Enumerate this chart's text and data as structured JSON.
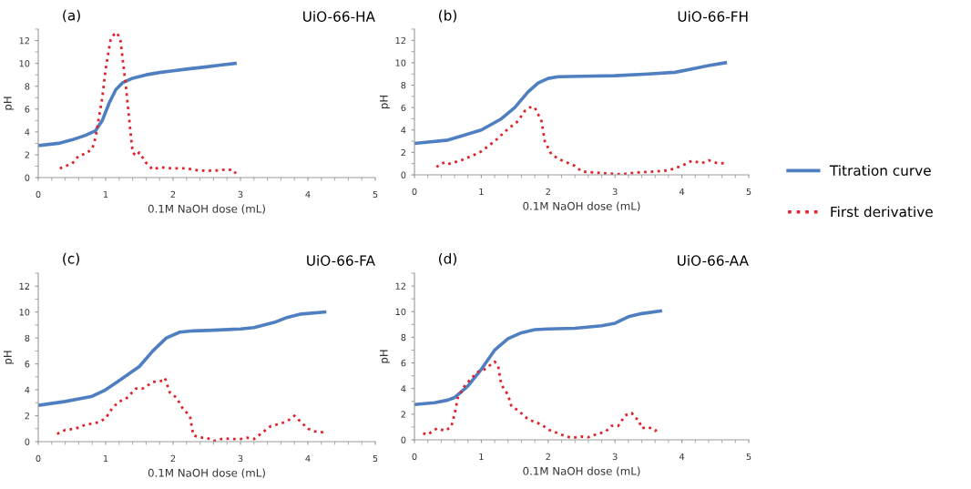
{
  "chart_data": [
    {
      "type": "line",
      "title": "UiO-66-HA",
      "annotations": [
        "(a)"
      ],
      "xlabel": "0.1M NaOH dose (mL)",
      "ylabel": "pH",
      "xlim": [
        0,
        5
      ],
      "ylim": [
        0,
        13
      ],
      "xticks": [
        0,
        1,
        2,
        3,
        4,
        5
      ],
      "yticks": [
        0,
        2,
        4,
        6,
        8,
        10,
        12
      ],
      "grid": false,
      "legend": false,
      "marker": "none",
      "series": [
        {
          "color": "#4f7fc0",
          "line_style": "solid",
          "x": [
            0,
            0.3,
            0.5,
            0.7,
            0.85,
            0.95,
            1.05,
            1.15,
            1.25,
            1.4,
            1.6,
            1.8,
            2.0,
            2.2,
            2.5,
            2.7,
            2.92
          ],
          "values": [
            2.8,
            3.0,
            3.3,
            3.7,
            4.1,
            5.0,
            6.5,
            7.7,
            8.3,
            8.7,
            9.0,
            9.2,
            9.35,
            9.5,
            9.7,
            9.85,
            10.0
          ]
        },
        {
          "color": "#e0222a",
          "line_style": "dotted",
          "x": [
            0.32,
            0.4,
            0.5,
            0.6,
            0.7,
            0.8,
            0.85,
            0.95,
            1.0,
            1.07,
            1.12,
            1.17,
            1.22,
            1.3,
            1.36,
            1.4,
            1.45,
            1.5,
            1.6,
            1.7,
            1.8,
            2.0,
            2.2,
            2.4,
            2.6,
            2.8,
            2.9,
            2.93
          ],
          "values": [
            0.8,
            1.0,
            1.2,
            1.9,
            2.1,
            2.5,
            3.5,
            7.0,
            9.5,
            12.0,
            12.5,
            12.7,
            12.0,
            8.0,
            4.5,
            2.2,
            1.9,
            2.2,
            1.3,
            0.7,
            0.9,
            0.8,
            0.8,
            0.6,
            0.6,
            0.7,
            0.65,
            0.35
          ]
        }
      ]
    },
    {
      "type": "line",
      "title": "UiO-66-FH",
      "annotations": [
        "(b)"
      ],
      "xlabel": "0.1M NaOH dose (mL)",
      "ylabel": "pH",
      "xlim": [
        0,
        5
      ],
      "ylim": [
        0,
        13
      ],
      "xticks": [
        0,
        1,
        2,
        3,
        4,
        5
      ],
      "yticks": [
        0,
        2,
        4,
        6,
        8,
        10,
        12
      ],
      "grid": false,
      "legend": "right",
      "marker": "none",
      "series": [
        {
          "name": "Titration curve",
          "color": "#4f7fc0",
          "line_style": "solid",
          "x": [
            0,
            0.5,
            1.0,
            1.3,
            1.5,
            1.7,
            1.85,
            2.0,
            2.15,
            2.5,
            3.0,
            3.5,
            3.9,
            4.2,
            4.4,
            4.65
          ],
          "values": [
            2.8,
            3.1,
            4.0,
            5.0,
            6.0,
            7.4,
            8.2,
            8.6,
            8.75,
            8.8,
            8.85,
            9.0,
            9.15,
            9.5,
            9.75,
            10.0
          ]
        },
        {
          "name": "First derivative",
          "color": "#e0222a",
          "line_style": "dotted",
          "x": [
            0.33,
            0.4,
            0.45,
            0.5,
            0.7,
            0.9,
            1.0,
            1.2,
            1.4,
            1.55,
            1.65,
            1.75,
            1.8,
            1.9,
            1.95,
            2.05,
            2.2,
            2.4,
            2.5,
            2.8,
            3.1,
            3.3,
            3.6,
            3.8,
            4.0,
            4.15,
            4.3,
            4.4,
            4.55,
            4.65
          ],
          "values": [
            0.7,
            1.0,
            1.1,
            0.95,
            1.3,
            1.8,
            2.1,
            3.0,
            4.1,
            4.8,
            5.7,
            6.1,
            6.0,
            4.8,
            3.0,
            1.8,
            1.3,
            0.8,
            0.3,
            0.15,
            0.05,
            0.2,
            0.3,
            0.4,
            0.8,
            1.25,
            1.05,
            1.3,
            1.0,
            1.05
          ]
        }
      ]
    },
    {
      "type": "line",
      "title": "UiO-66-FA",
      "annotations": [
        "(c)"
      ],
      "xlabel": "0.1M NaOH dose (mL)",
      "ylabel": "pH",
      "xlim": [
        0,
        5
      ],
      "ylim": [
        0,
        13
      ],
      "xticks": [
        0,
        1,
        2,
        3,
        4,
        5
      ],
      "yticks": [
        0,
        2,
        4,
        6,
        8,
        10,
        12
      ],
      "grid": false,
      "legend": false,
      "marker": "none",
      "series": [
        {
          "color": "#4f7fc0",
          "line_style": "solid",
          "x": [
            0,
            0.4,
            0.8,
            1.0,
            1.2,
            1.5,
            1.7,
            1.9,
            2.1,
            2.3,
            2.6,
            3.0,
            3.2,
            3.5,
            3.7,
            3.9,
            4.25
          ],
          "values": [
            2.8,
            3.1,
            3.5,
            4.0,
            4.7,
            5.8,
            7.0,
            8.0,
            8.45,
            8.55,
            8.6,
            8.7,
            8.8,
            9.2,
            9.6,
            9.85,
            10.0
          ]
        },
        {
          "color": "#e0222a",
          "line_style": "dotted",
          "x": [
            0.28,
            0.4,
            0.55,
            0.7,
            0.9,
            1.0,
            1.1,
            1.2,
            1.3,
            1.45,
            1.55,
            1.7,
            1.85,
            1.88,
            1.95,
            2.05,
            2.15,
            2.25,
            2.3,
            2.4,
            2.5,
            2.6,
            2.75,
            2.9,
            3.0,
            3.1,
            3.2,
            3.35,
            3.45,
            3.6,
            3.7,
            3.8,
            3.9,
            4.0,
            4.1,
            4.25
          ],
          "values": [
            0.6,
            0.9,
            1.0,
            1.3,
            1.5,
            1.8,
            2.6,
            3.1,
            3.3,
            4.1,
            4.1,
            4.6,
            4.7,
            4.9,
            3.8,
            3.4,
            2.5,
            2.0,
            0.5,
            0.3,
            0.3,
            0.05,
            0.25,
            0.2,
            0.2,
            0.3,
            0.2,
            0.8,
            1.2,
            1.4,
            1.6,
            2.0,
            1.5,
            1.0,
            0.8,
            0.7
          ]
        }
      ]
    },
    {
      "type": "line",
      "title": "UiO-66-AA",
      "annotations": [
        "(d)"
      ],
      "xlabel": "0.1M NaOH dose (mL)",
      "ylabel": "pH",
      "xlim": [
        0,
        5
      ],
      "ylim": [
        0,
        13
      ],
      "xticks": [
        0,
        1,
        2,
        3,
        4,
        5
      ],
      "yticks": [
        0,
        2,
        4,
        6,
        8,
        10,
        12
      ],
      "grid": false,
      "legend": false,
      "marker": "none",
      "series": [
        {
          "color": "#4f7fc0",
          "line_style": "solid",
          "x": [
            0,
            0.3,
            0.5,
            0.6,
            0.8,
            1.0,
            1.2,
            1.4,
            1.6,
            1.8,
            2.0,
            2.4,
            2.8,
            3.0,
            3.2,
            3.4,
            3.68
          ],
          "values": [
            2.75,
            2.9,
            3.1,
            3.3,
            4.2,
            5.5,
            7.0,
            7.9,
            8.35,
            8.6,
            8.65,
            8.7,
            8.9,
            9.1,
            9.6,
            9.85,
            10.05
          ]
        },
        {
          "color": "#e0222a",
          "line_style": "dotted",
          "x": [
            0.13,
            0.2,
            0.3,
            0.35,
            0.45,
            0.55,
            0.6,
            0.65,
            0.75,
            0.85,
            0.95,
            1.05,
            1.15,
            1.2,
            1.25,
            1.3,
            1.4,
            1.45,
            1.55,
            1.7,
            1.8,
            1.9,
            2.0,
            2.2,
            2.35,
            2.5,
            2.6,
            2.75,
            2.85,
            2.95,
            3.05,
            3.15,
            3.25,
            3.3,
            3.35,
            3.4,
            3.5,
            3.6,
            3.65
          ],
          "values": [
            0.5,
            0.4,
            0.8,
            0.9,
            0.7,
            1.0,
            2.0,
            3.3,
            4.2,
            4.8,
            5.3,
            5.5,
            5.9,
            6.1,
            5.8,
            4.3,
            3.5,
            2.6,
            2.3,
            1.6,
            1.4,
            1.2,
            0.8,
            0.4,
            0.15,
            0.25,
            0.2,
            0.5,
            0.6,
            1.1,
            1.1,
            1.9,
            2.1,
            1.7,
            1.6,
            0.9,
            1.0,
            0.7,
            0.9
          ]
        }
      ]
    }
  ]
}
